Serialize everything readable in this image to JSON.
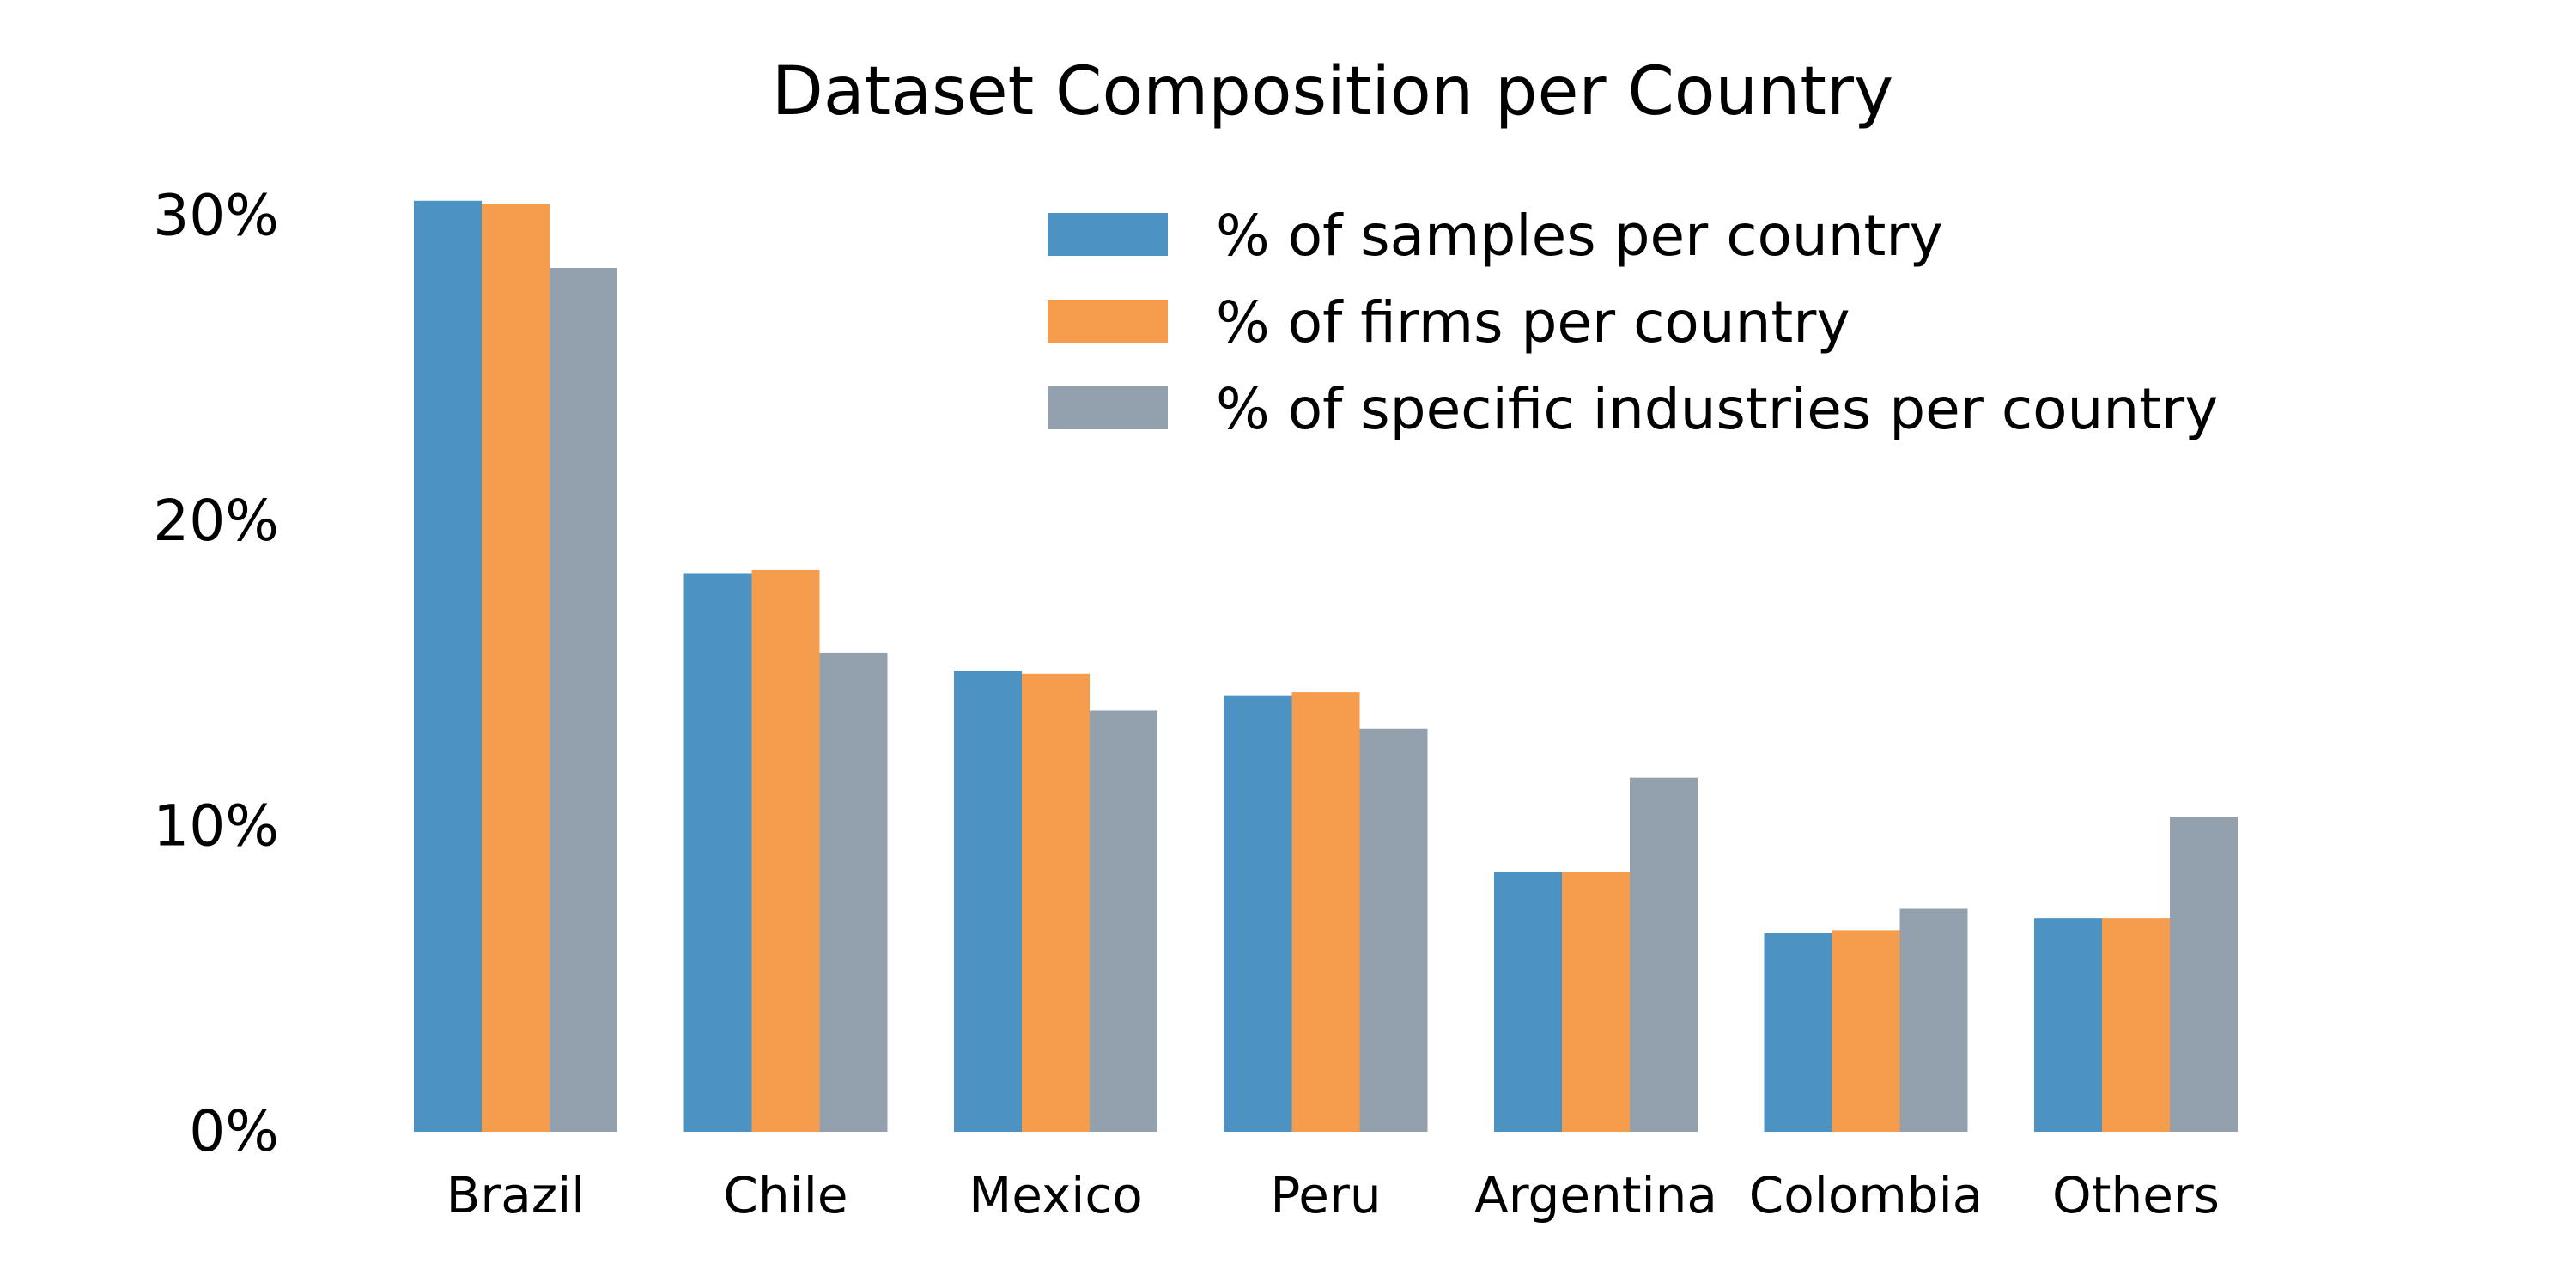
{
  "chart_data": {
    "type": "bar",
    "title": "Dataset Composition per Country",
    "xlabel": "",
    "ylabel": "",
    "categories": [
      "Brazil",
      "Chile",
      "Mexico",
      "Peru",
      "Argentina",
      "Colombia",
      "Others"
    ],
    "series": [
      {
        "name": "% of samples per country",
        "color": "#4c92c3",
        "values": [
          30.5,
          18.3,
          15.1,
          14.3,
          8.5,
          6.5,
          7.0
        ]
      },
      {
        "name": "% of firms per country",
        "color": "#f59d4c",
        "values": [
          30.4,
          18.4,
          15.0,
          14.4,
          8.5,
          6.6,
          7.0
        ]
      },
      {
        "name": "% of specific industries per country",
        "color": "#93a1ae",
        "values": [
          28.3,
          15.7,
          13.8,
          13.2,
          11.6,
          7.3,
          10.3
        ]
      }
    ],
    "ylim": [
      0,
      30.5
    ],
    "yticks": [
      0,
      10,
      20,
      30
    ],
    "ytick_labels": [
      "0%",
      "10%",
      "20%",
      "30%"
    ],
    "grid": false,
    "legend_position": "top-right"
  }
}
